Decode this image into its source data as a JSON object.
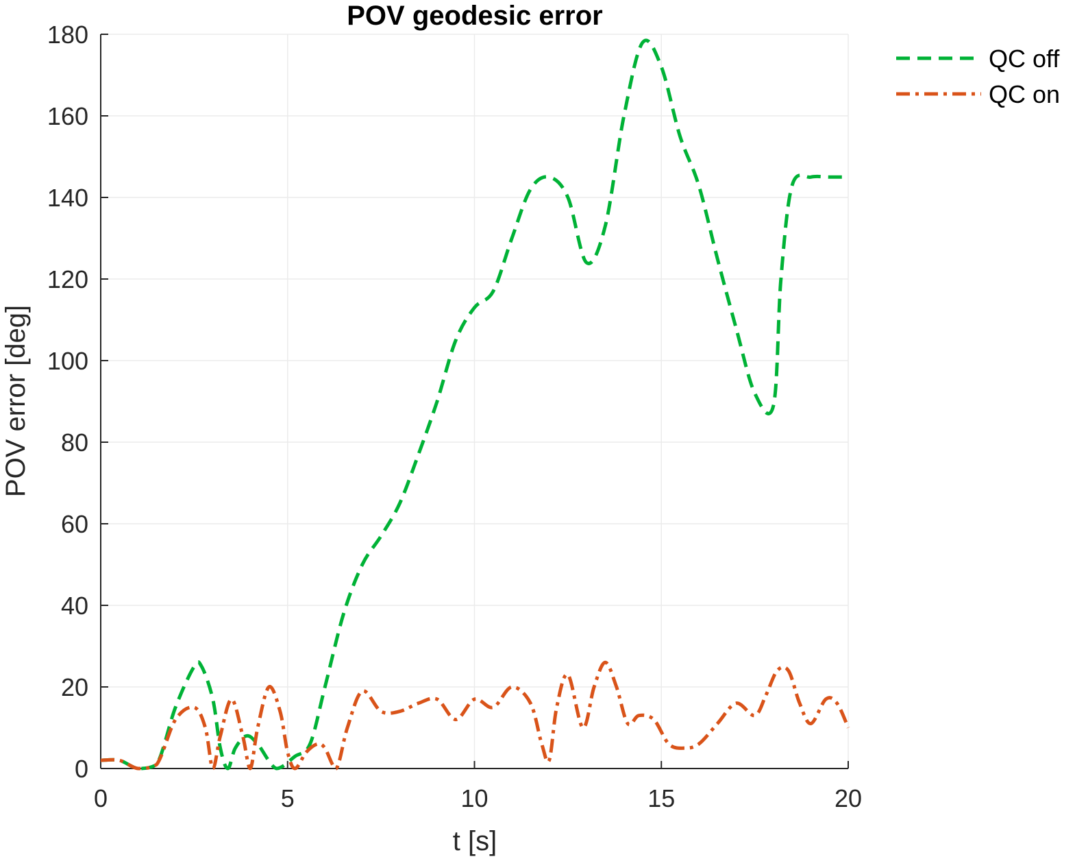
{
  "chart_data": {
    "type": "line",
    "title": "POV geodesic error",
    "xlabel": "t [s]",
    "ylabel": "POV error [deg]",
    "xlim": [
      0,
      20
    ],
    "ylim": [
      0,
      180
    ],
    "xticks": [
      0,
      5,
      10,
      15,
      20
    ],
    "yticks": [
      0,
      20,
      40,
      60,
      80,
      100,
      120,
      140,
      160,
      180
    ],
    "xtick_labels": [
      "0",
      "5",
      "10",
      "15",
      "20"
    ],
    "ytick_labels": [
      "0",
      "20",
      "40",
      "60",
      "80",
      "100",
      "120",
      "140",
      "160",
      "180"
    ],
    "grid": true,
    "legend_position": "outside top-right",
    "series": [
      {
        "name": "QC off",
        "color": "#00b236",
        "style": "dashed",
        "x": [
          0,
          0.5,
          1.0,
          1.5,
          2.0,
          2.5,
          2.7,
          3.0,
          3.2,
          3.4,
          3.6,
          3.9,
          4.2,
          4.7,
          5.2,
          5.6,
          6.0,
          6.5,
          7.0,
          7.5,
          8.0,
          8.5,
          9.0,
          9.5,
          10.0,
          10.5,
          11.0,
          11.5,
          12.0,
          12.5,
          13.0,
          13.5,
          14.0,
          14.5,
          15.0,
          15.5,
          16.0,
          16.5,
          17.0,
          17.5,
          18.0,
          18.2,
          18.5,
          19.0,
          19.5,
          20.0
        ],
        "y": [
          2,
          2,
          0,
          1,
          15,
          25,
          25,
          17,
          5,
          0,
          5,
          8,
          6,
          0,
          3,
          6,
          20,
          38,
          50,
          57,
          65,
          77,
          90,
          105,
          113,
          117,
          130,
          142,
          145,
          140,
          124,
          133,
          160,
          178,
          172,
          155,
          143,
          125,
          108,
          92,
          89,
          120,
          143,
          145,
          145,
          145
        ]
      },
      {
        "name": "QC on",
        "color": "#d95319",
        "style": "dash-dot",
        "x": [
          0,
          0.5,
          1.0,
          1.5,
          2.0,
          2.5,
          2.8,
          3.0,
          3.2,
          3.5,
          3.8,
          4.0,
          4.2,
          4.5,
          4.8,
          5.0,
          5.2,
          5.5,
          5.8,
          6.0,
          6.3,
          6.6,
          7.0,
          7.5,
          8.0,
          8.5,
          9.0,
          9.5,
          10.0,
          10.5,
          11.0,
          11.5,
          11.8,
          12.0,
          12.2,
          12.5,
          12.9,
          13.2,
          13.5,
          13.8,
          14.1,
          14.4,
          14.8,
          15.2,
          15.6,
          16.0,
          16.5,
          17.0,
          17.5,
          17.8,
          18.1,
          18.4,
          18.7,
          19.0,
          19.4,
          19.7,
          20.0
        ],
        "y": [
          2,
          2,
          0,
          1,
          12,
          15,
          10,
          0,
          8,
          17,
          8,
          0,
          10,
          20,
          14,
          4,
          0,
          4,
          6,
          5,
          0,
          10,
          19,
          14,
          14,
          16,
          17,
          12,
          17,
          15,
          20,
          16,
          6,
          2,
          15,
          23,
          10,
          20,
          26,
          20,
          11,
          13,
          12,
          6,
          5,
          6,
          11,
          16,
          13,
          18,
          24,
          24,
          16,
          11,
          17,
          16,
          10
        ]
      }
    ]
  }
}
